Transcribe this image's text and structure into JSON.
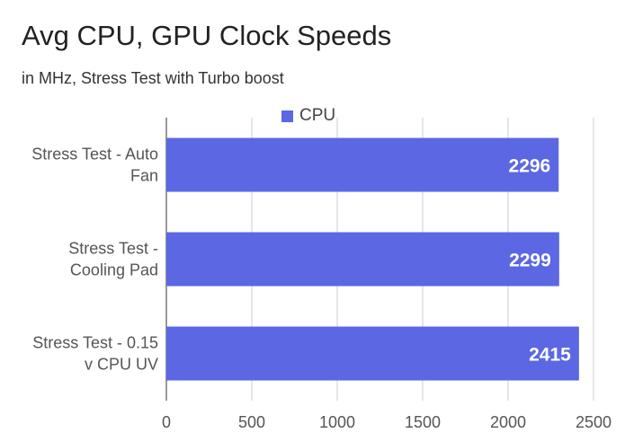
{
  "chart_data": {
    "type": "bar",
    "orientation": "horizontal",
    "title": "Avg CPU, GPU Clock Speeds",
    "subtitle": "in MHz, Stress Test with Turbo boost",
    "categories": [
      [
        "Stress Test - Auto",
        "Fan"
      ],
      [
        "Stress Test -",
        "Cooling Pad"
      ],
      [
        "Stress Test - 0.15",
        "v CPU UV"
      ]
    ],
    "series": [
      {
        "name": "CPU",
        "color": "#5b67e3",
        "values": [
          2296,
          2299,
          2415
        ]
      }
    ],
    "x_ticks": [
      0,
      500,
      1000,
      1500,
      2000,
      2500
    ],
    "xlim": [
      0,
      2500
    ],
    "grid": true,
    "legend_position": "top",
    "data_labels": true
  }
}
